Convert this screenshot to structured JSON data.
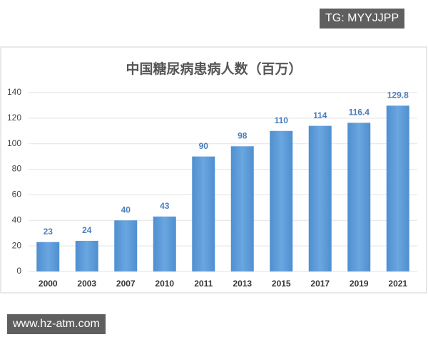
{
  "chart_data": {
    "type": "bar",
    "title": "中国糖尿病患病人数（百万）",
    "categories": [
      "2000",
      "2003",
      "2007",
      "2010",
      "2011",
      "2013",
      "2015",
      "2017",
      "2019",
      "2021"
    ],
    "values": [
      23,
      24,
      40,
      43,
      90,
      98,
      110,
      114,
      116.4,
      129.8
    ],
    "color": "#5b9bd5",
    "label_color": "#4a7ebb",
    "ylim": [
      0,
      140
    ],
    "yticks": [
      0,
      20,
      40,
      60,
      80,
      100,
      120,
      140
    ],
    "grid": true
  },
  "overlay": {
    "top_tag": "TG: MYYJJPP",
    "bottom_tag": "www.hz-atm.com"
  }
}
